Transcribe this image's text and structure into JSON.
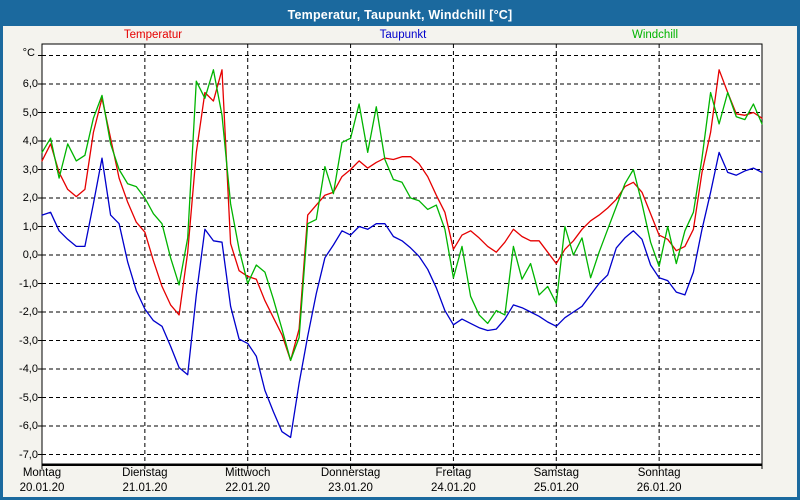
{
  "window": {
    "title": "Temperatur, Taupunkt, Windchill [°C]",
    "frame_color": "#1b699e",
    "background_color": "#f4f3ee",
    "plot_background": "#ffffff"
  },
  "chart_data": {
    "type": "line",
    "title": "Temperatur, Taupunkt, Windchill [°C]",
    "grid": "dashed",
    "legend_position": "top",
    "y_axis": {
      "unit_label": "°C",
      "ylim": [
        -7.3,
        7.4
      ],
      "ticks": [
        {
          "value": 7,
          "label": ""
        },
        {
          "value": 6,
          "label": "6,0"
        },
        {
          "value": 5,
          "label": "5,0"
        },
        {
          "value": 4,
          "label": "4,0"
        },
        {
          "value": 3,
          "label": "3,0"
        },
        {
          "value": 2,
          "label": "2,0"
        },
        {
          "value": 1,
          "label": "1,0"
        },
        {
          "value": 0,
          "label": "0,0"
        },
        {
          "value": -1,
          "label": "-1,0"
        },
        {
          "value": -2,
          "label": "-2,0"
        },
        {
          "value": -3,
          "label": "-3,0"
        },
        {
          "value": -4,
          "label": "-4,0"
        },
        {
          "value": -5,
          "label": "-5,0"
        },
        {
          "value": -6,
          "label": "-6,0"
        },
        {
          "value": -7,
          "label": "-7,0"
        }
      ]
    },
    "x_axis": {
      "range_hours": 168,
      "sample_interval_hours": 2,
      "days": [
        {
          "weekday": "Montag",
          "date": "20.01.20"
        },
        {
          "weekday": "Dienstag",
          "date": "21.01.20"
        },
        {
          "weekday": "Mittwoch",
          "date": "22.01.20"
        },
        {
          "weekday": "Donnerstag",
          "date": "23.01.20"
        },
        {
          "weekday": "Freitag",
          "date": "24.01.20"
        },
        {
          "weekday": "Samstag",
          "date": "25.01.20"
        },
        {
          "weekday": "Sonntag",
          "date": "26.01.20"
        }
      ]
    },
    "series": [
      {
        "name": "Temperatur",
        "color": "#e60000",
        "values": [
          3.3,
          3.9,
          2.9,
          2.3,
          2.05,
          2.3,
          4.3,
          5.5,
          4.1,
          2.7,
          1.85,
          1.15,
          0.8,
          -0.2,
          -1.1,
          -1.75,
          -2.1,
          0.1,
          3.6,
          5.7,
          5.4,
          6.5,
          0.4,
          -0.55,
          -0.75,
          -0.85,
          -1.6,
          -2.2,
          -2.8,
          -3.7,
          -2.6,
          1.4,
          1.75,
          2.1,
          2.2,
          2.75,
          3.0,
          3.3,
          3.05,
          3.25,
          3.4,
          3.35,
          3.45,
          3.45,
          3.2,
          2.75,
          2.1,
          1.5,
          0.2,
          0.7,
          0.85,
          0.6,
          0.3,
          0.1,
          0.45,
          0.9,
          0.65,
          0.5,
          0.5,
          0.1,
          -0.3,
          0.2,
          0.5,
          0.9,
          1.2,
          1.4,
          1.65,
          1.95,
          2.4,
          2.55,
          2.2,
          1.45,
          0.7,
          0.55,
          0.15,
          0.3,
          0.9,
          2.9,
          4.3,
          6.5,
          5.7,
          4.95,
          4.9,
          5.0,
          4.8
        ]
      },
      {
        "name": "Taupunkt",
        "color": "#0000cc",
        "values": [
          1.4,
          1.5,
          0.85,
          0.55,
          0.3,
          0.3,
          1.8,
          3.4,
          1.4,
          1.1,
          -0.25,
          -1.25,
          -1.9,
          -2.3,
          -2.5,
          -3.2,
          -3.95,
          -4.2,
          -1.4,
          0.9,
          0.5,
          0.45,
          -1.8,
          -2.95,
          -3.1,
          -3.55,
          -4.75,
          -5.5,
          -6.2,
          -6.4,
          -4.5,
          -2.85,
          -1.35,
          -0.1,
          0.35,
          0.85,
          0.7,
          1.0,
          0.9,
          1.1,
          1.1,
          0.65,
          0.5,
          0.25,
          -0.05,
          -0.5,
          -1.15,
          -1.95,
          -2.45,
          -2.25,
          -2.4,
          -2.55,
          -2.65,
          -2.6,
          -2.25,
          -1.75,
          -1.85,
          -2.0,
          -2.15,
          -2.35,
          -2.5,
          -2.2,
          -2.0,
          -1.8,
          -1.4,
          -1.0,
          -0.7,
          0.25,
          0.6,
          0.85,
          0.55,
          -0.35,
          -0.8,
          -0.9,
          -1.3,
          -1.4,
          -0.6,
          0.9,
          2.2,
          3.6,
          2.9,
          2.8,
          2.95,
          3.05,
          2.9
        ]
      },
      {
        "name": "Windchill",
        "color": "#00b400",
        "values": [
          3.6,
          4.1,
          2.7,
          3.9,
          3.3,
          3.5,
          4.8,
          5.6,
          3.9,
          3.0,
          2.5,
          2.4,
          2.0,
          1.45,
          1.1,
          -0.1,
          -1.05,
          0.6,
          6.1,
          5.5,
          6.5,
          4.9,
          1.8,
          0.2,
          -1.0,
          -0.35,
          -0.6,
          -1.55,
          -2.6,
          -3.7,
          -2.9,
          1.1,
          1.25,
          3.1,
          2.15,
          3.95,
          4.1,
          5.3,
          3.6,
          5.2,
          3.35,
          2.65,
          2.55,
          2.0,
          1.9,
          1.6,
          1.75,
          0.9,
          -0.8,
          0.3,
          -1.45,
          -2.1,
          -2.4,
          -1.95,
          -2.1,
          0.3,
          -0.85,
          -0.3,
          -1.4,
          -1.1,
          -1.7,
          1.0,
          0.0,
          0.6,
          -0.8,
          0.1,
          0.9,
          1.7,
          2.5,
          3.0,
          1.8,
          0.45,
          -0.4,
          1.0,
          -0.3,
          0.85,
          1.5,
          3.4,
          5.7,
          4.6,
          5.7,
          4.85,
          4.75,
          5.3,
          4.6
        ]
      }
    ]
  }
}
